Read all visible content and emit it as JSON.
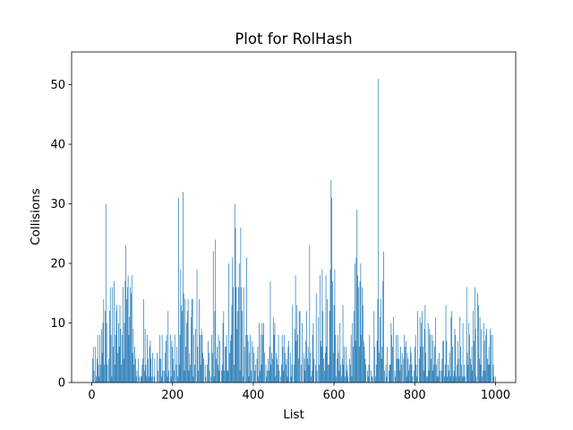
{
  "chart_data": {
    "type": "bar",
    "title": "Plot for RolHash",
    "xlabel": "List",
    "ylabel": "Collisions",
    "xlim": [
      -50,
      1050
    ],
    "ylim": [
      0,
      55.5
    ],
    "x_ticks": [
      0,
      200,
      400,
      600,
      800,
      1000
    ],
    "y_ticks": [
      0,
      10,
      20,
      30,
      40,
      50
    ],
    "grid": false,
    "legend": "none",
    "bar_color": "#1f77b4",
    "x_start": 0,
    "values": [
      0,
      4,
      6,
      2,
      0,
      6,
      1,
      4,
      8,
      3,
      1,
      8,
      3,
      9,
      5,
      10,
      14,
      3,
      12,
      30,
      10,
      3,
      0,
      4,
      12,
      16,
      8,
      1,
      16,
      6,
      17,
      3,
      8,
      12,
      13,
      5,
      10,
      6,
      13,
      9,
      3,
      8,
      16,
      4,
      10,
      17,
      23,
      14,
      16,
      18,
      8,
      11,
      16,
      15,
      18,
      5,
      9,
      3,
      6,
      4,
      1,
      2,
      0,
      4,
      1,
      0,
      1,
      1,
      3,
      4,
      14,
      2,
      9,
      3,
      1,
      8,
      4,
      1,
      6,
      7,
      4,
      1,
      5,
      0,
      1,
      4,
      0,
      0,
      5,
      2,
      0,
      4,
      8,
      4,
      1,
      8,
      2,
      0,
      2,
      5,
      7,
      8,
      1,
      12,
      2,
      0,
      8,
      1,
      7,
      6,
      4,
      2,
      8,
      0,
      3,
      6,
      1,
      31,
      3,
      8,
      19,
      13,
      12,
      32,
      15,
      2,
      14,
      6,
      10,
      12,
      14,
      2,
      5,
      3,
      11,
      14,
      14,
      1,
      8,
      3,
      9,
      0,
      19,
      6,
      2,
      14,
      8,
      3,
      9,
      8,
      5,
      4,
      0,
      3,
      1,
      0,
      3,
      7,
      5,
      2,
      0,
      1,
      8,
      5,
      22,
      1,
      12,
      24,
      4,
      6,
      3,
      8,
      2,
      7,
      0,
      2,
      3,
      10,
      12,
      2,
      6,
      6,
      8,
      2,
      2,
      20,
      5,
      7,
      8,
      13,
      21,
      16,
      3,
      30,
      26,
      16,
      9,
      12,
      16,
      20,
      2,
      26,
      16,
      12,
      1,
      16,
      6,
      0,
      8,
      21,
      8,
      7,
      1,
      5,
      8,
      2,
      7,
      0,
      6,
      5,
      2,
      3,
      0,
      4,
      6,
      1,
      10,
      2,
      8,
      3,
      10,
      8,
      10,
      5,
      0,
      3,
      1,
      2,
      4,
      2,
      6,
      17,
      3,
      5,
      4,
      11,
      8,
      10,
      1,
      5,
      4,
      3,
      8,
      2,
      0,
      1,
      3,
      8,
      6,
      2,
      8,
      5,
      3,
      4,
      1,
      6,
      7,
      0,
      5,
      1,
      3,
      13,
      0,
      3,
      9,
      18,
      7,
      13,
      8,
      4,
      12,
      12,
      0,
      3,
      10,
      0,
      5,
      4,
      2,
      7,
      12,
      4,
      6,
      3,
      23,
      5,
      1,
      2,
      8,
      10,
      4,
      0,
      3,
      15,
      2,
      0,
      11,
      3,
      18,
      7,
      6,
      19,
      12,
      4,
      2,
      5,
      18,
      6,
      14,
      3,
      3,
      12,
      19,
      34,
      31,
      17,
      5,
      13,
      19,
      8,
      1,
      4,
      8,
      5,
      2,
      10,
      3,
      1,
      4,
      13,
      3,
      6,
      1,
      6,
      2,
      3,
      1,
      0,
      4,
      3,
      8,
      1,
      10,
      6,
      12,
      20,
      7,
      21,
      29,
      18,
      16,
      6,
      17,
      20,
      8,
      16,
      13,
      7,
      6,
      4,
      3,
      0,
      2,
      1,
      3,
      8,
      0,
      2,
      1,
      1,
      0,
      12,
      6,
      1,
      3,
      7,
      14,
      51,
      5,
      11,
      14,
      4,
      6,
      17,
      22,
      2,
      0,
      3,
      1,
      6,
      0,
      2,
      3,
      3,
      10,
      8,
      6,
      11,
      0,
      2,
      1,
      8,
      4,
      8,
      4,
      4,
      2,
      6,
      3,
      5,
      0,
      4,
      8,
      6,
      7,
      1,
      5,
      4,
      2,
      3,
      6,
      5,
      3,
      1,
      0,
      2,
      6,
      8,
      3,
      1,
      12,
      0,
      4,
      11,
      6,
      10,
      12,
      6,
      2,
      9,
      13,
      5,
      1,
      1,
      10,
      2,
      9,
      8,
      4,
      8,
      2,
      7,
      3,
      6,
      11,
      3,
      1,
      4,
      1,
      5,
      2,
      0,
      2,
      4,
      7,
      7,
      1,
      3,
      13,
      7,
      1,
      3,
      2,
      5,
      1,
      11,
      12,
      6,
      1,
      2,
      9,
      8,
      1,
      3,
      7,
      4,
      1,
      11,
      6,
      3,
      1,
      10,
      1,
      3,
      1,
      0,
      16,
      5,
      3,
      10,
      8,
      4,
      3,
      6,
      2,
      12,
      7,
      16,
      9,
      1,
      0,
      15,
      13,
      4,
      11,
      3,
      9,
      1,
      2,
      10,
      7,
      2,
      8,
      9,
      4,
      3,
      6,
      3,
      9,
      8,
      0,
      8,
      3,
      1,
      0,
      1
    ]
  }
}
